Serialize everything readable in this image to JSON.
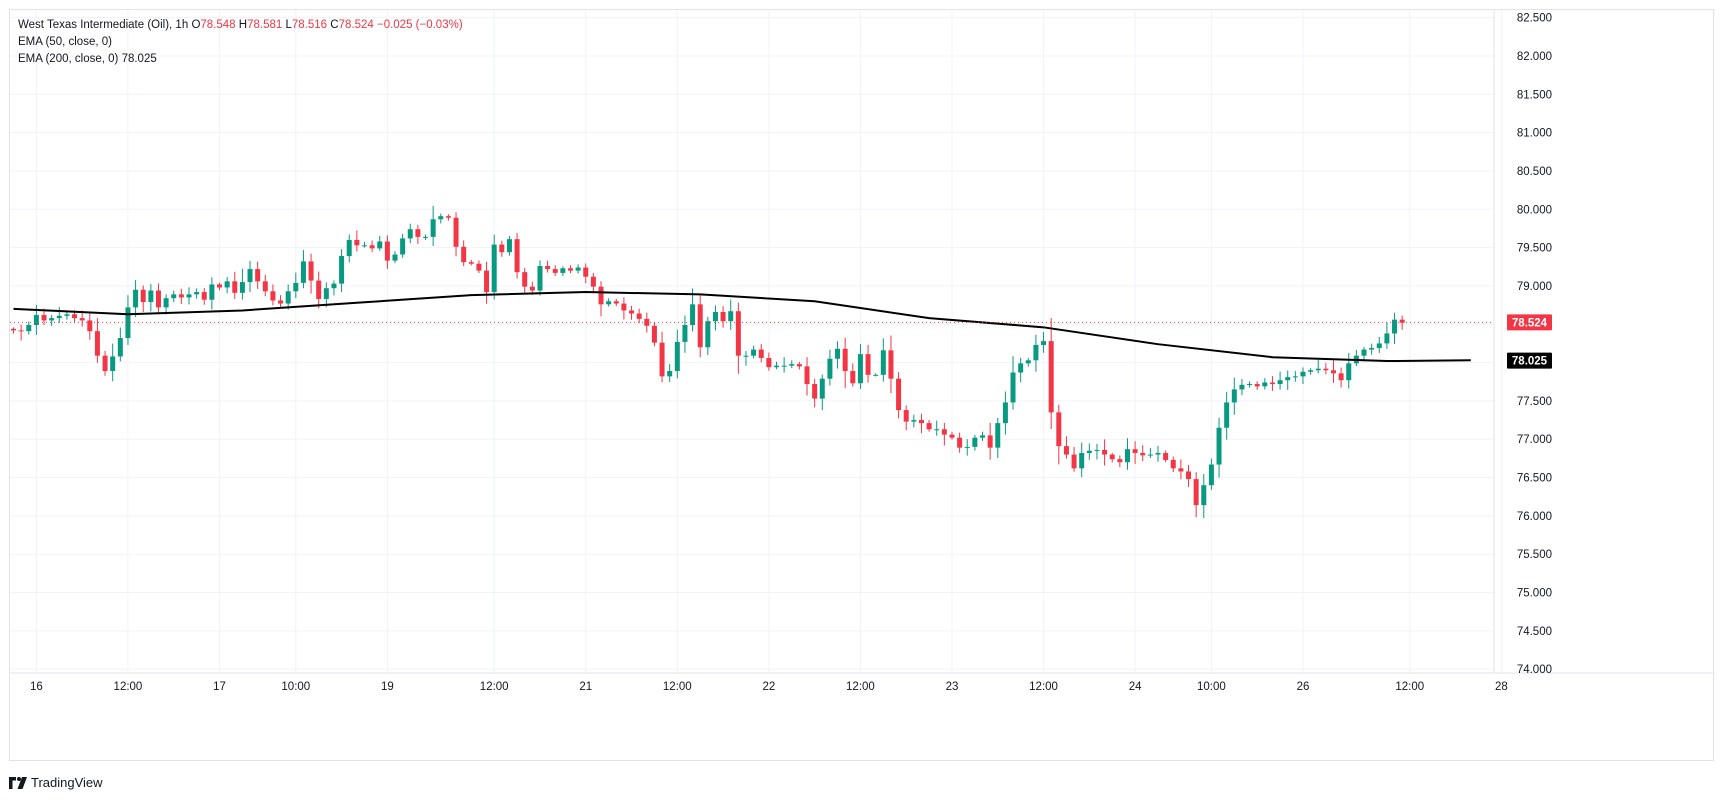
{
  "legend": {
    "symbol": "West Texas Intermediate (Oil), 1h",
    "o_label": "O",
    "o_value": "78.548",
    "h_label": "H",
    "h_value": "78.581",
    "l_label": "L",
    "l_value": "78.516",
    "c_label": "C",
    "c_value": "78.524",
    "change": "−0.025 (−0.03%)",
    "ema50": "EMA (50, close, 0)",
    "ema200": "EMA (200, close, 0)",
    "ema200_value": "78.025"
  },
  "brand": {
    "name": "TradingView",
    "icon": "tradingview-logo-icon"
  },
  "colors": {
    "up": "#089981",
    "down": "#f23645",
    "ema": "#000000",
    "price_line": "#f23645",
    "grid": "#f0f3fa"
  },
  "chart_data": {
    "type": "candlestick",
    "title": "West Texas Intermediate (Oil), 1h",
    "ylim": [
      73.95,
      82.6
    ],
    "y_ticks": [
      "82.500",
      "82.000",
      "81.500",
      "81.000",
      "80.500",
      "80.000",
      "79.500",
      "79.000",
      "78.500",
      "78.000",
      "77.500",
      "77.000",
      "76.500",
      "76.000",
      "75.500",
      "75.000",
      "74.500",
      "74.000"
    ],
    "x_ticks": [
      {
        "label": "16",
        "bar": 3
      },
      {
        "label": "12:00",
        "bar": 15
      },
      {
        "label": "17",
        "bar": 27
      },
      {
        "label": "10:00",
        "bar": 37
      },
      {
        "label": "19",
        "bar": 49
      },
      {
        "label": "12:00",
        "bar": 63
      },
      {
        "label": "21",
        "bar": 75
      },
      {
        "label": "12:00",
        "bar": 87
      },
      {
        "label": "22",
        "bar": 99
      },
      {
        "label": "12:00",
        "bar": 111
      },
      {
        "label": "23",
        "bar": 123
      },
      {
        "label": "12:00",
        "bar": 135
      },
      {
        "label": "24",
        "bar": 147
      },
      {
        "label": "10:00",
        "bar": 157
      },
      {
        "label": "26",
        "bar": 169
      },
      {
        "label": "12:00",
        "bar": 183
      },
      {
        "label": "28",
        "bar": 195
      }
    ],
    "last_price": "78.524",
    "last_price_value": 78.524,
    "ema200_label": "78.025",
    "closes": [
      78.42,
      78.41,
      78.49,
      78.62,
      78.55,
      78.58,
      78.61,
      78.63,
      78.58,
      78.55,
      78.41,
      78.09,
      77.89,
      78.08,
      78.32,
      78.72,
      78.95,
      78.79,
      78.94,
      78.72,
      78.84,
      78.89,
      78.85,
      78.89,
      78.92,
      78.82,
      79.02,
      78.98,
      79.06,
      78.91,
      79.05,
      79.22,
      79.06,
      78.93,
      78.81,
      78.77,
      78.93,
      79.04,
      79.32,
      79.07,
      78.83,
      78.97,
      79.03,
      79.39,
      79.6,
      79.53,
      79.53,
      79.49,
      79.58,
      79.33,
      79.41,
      79.62,
      79.74,
      79.64,
      79.64,
      79.87,
      79.91,
      79.89,
      79.51,
      79.31,
      79.29,
      79.2,
      78.92,
      79.54,
      79.44,
      79.61,
      79.18,
      78.99,
      78.94,
      79.26,
      79.22,
      79.17,
      79.23,
      79.2,
      79.24,
      79.12,
      78.99,
      78.76,
      78.8,
      78.77,
      78.68,
      78.64,
      78.57,
      78.48,
      78.26,
      77.82,
      77.89,
      78.27,
      78.49,
      78.76,
      78.2,
      78.54,
      78.66,
      78.54,
      78.67,
      78.09,
      78.09,
      78.17,
      78.06,
      77.94,
      77.96,
      77.96,
      77.98,
      77.95,
      77.72,
      77.53,
      77.79,
      78.05,
      78.18,
      77.89,
      77.73,
      78.11,
      77.84,
      77.84,
      78.16,
      77.79,
      77.38,
      77.23,
      77.25,
      77.21,
      77.13,
      77.13,
      77.06,
      77.02,
      76.89,
      76.9,
      77.02,
      77.05,
      76.89,
      77.21,
      77.48,
      77.87,
      77.99,
      78.03,
      78.23,
      78.28,
      77.35,
      76.91,
      76.8,
      76.62,
      76.82,
      76.85,
      76.86,
      76.8,
      76.74,
      76.7,
      76.87,
      76.82,
      76.79,
      76.8,
      76.82,
      76.73,
      76.62,
      76.58,
      76.48,
      76.14,
      76.4,
      76.67,
      77.15,
      77.48,
      77.65,
      77.71,
      77.72,
      77.69,
      77.74,
      77.72,
      77.77,
      77.81,
      77.82,
      77.88,
      77.9,
      77.92,
      77.9,
      77.86,
      77.77,
      77.99,
      78.09,
      78.17,
      78.19,
      78.25,
      78.38,
      78.56,
      78.52
    ],
    "ema50_visible": false,
    "ema200": {
      "start": 78.7,
      "points": [
        [
          0,
          78.7
        ],
        [
          15,
          78.63
        ],
        [
          30,
          78.68
        ],
        [
          45,
          78.78
        ],
        [
          60,
          78.88
        ],
        [
          75,
          78.92
        ],
        [
          90,
          78.89
        ],
        [
          105,
          78.8
        ],
        [
          120,
          78.58
        ],
        [
          135,
          78.46
        ],
        [
          150,
          78.24
        ],
        [
          165,
          78.07
        ],
        [
          180,
          78.02
        ],
        [
          191,
          78.03
        ]
      ]
    }
  }
}
